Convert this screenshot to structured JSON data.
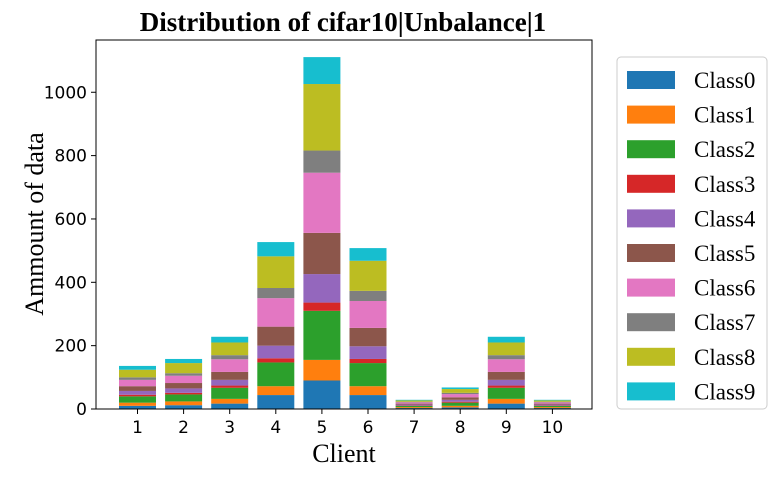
{
  "chart_data": {
    "type": "bar",
    "stacked": true,
    "title": "Distribution of cifar10|Unbalance|1",
    "xlabel": "Client",
    "ylabel": "Ammount of data",
    "categories": [
      "1",
      "2",
      "3",
      "4",
      "5",
      "6",
      "7",
      "8",
      "9",
      "10"
    ],
    "ylim": [
      0,
      1165
    ],
    "yticks": [
      0,
      200,
      400,
      600,
      800,
      1000
    ],
    "legend_position": "right-outside",
    "grid": false,
    "series": [
      {
        "name": "Class0",
        "color": "#1f77b4",
        "values": [
          10,
          12,
          17,
          44,
          90,
          44,
          3,
          5,
          17,
          3
        ]
      },
      {
        "name": "Class1",
        "color": "#ff7f0e",
        "values": [
          10,
          12,
          15,
          28,
          65,
          28,
          3,
          5,
          15,
          3
        ]
      },
      {
        "name": "Class2",
        "color": "#2ca02c",
        "values": [
          20,
          22,
          35,
          75,
          155,
          73,
          4,
          10,
          35,
          4
        ]
      },
      {
        "name": "Class3",
        "color": "#d62728",
        "values": [
          5,
          5,
          7,
          13,
          26,
          13,
          1,
          3,
          7,
          1
        ]
      },
      {
        "name": "Class4",
        "color": "#9467bd",
        "values": [
          12,
          14,
          18,
          40,
          90,
          40,
          3,
          6,
          18,
          3
        ]
      },
      {
        "name": "Class5",
        "color": "#8c564b",
        "values": [
          15,
          17,
          25,
          60,
          130,
          58,
          3,
          8,
          25,
          3
        ]
      },
      {
        "name": "Class6",
        "color": "#e377c2",
        "values": [
          20,
          23,
          40,
          90,
          190,
          85,
          4,
          10,
          40,
          4
        ]
      },
      {
        "name": "Class7",
        "color": "#7f7f7f",
        "values": [
          8,
          8,
          13,
          32,
          70,
          32,
          2,
          4,
          13,
          2
        ]
      },
      {
        "name": "Class8",
        "color": "#bcbd22",
        "values": [
          24,
          32,
          40,
          100,
          210,
          95,
          4,
          12,
          40,
          4
        ]
      },
      {
        "name": "Class9",
        "color": "#17becf",
        "values": [
          12,
          13,
          18,
          45,
          85,
          40,
          2,
          5,
          18,
          2
        ]
      }
    ]
  }
}
